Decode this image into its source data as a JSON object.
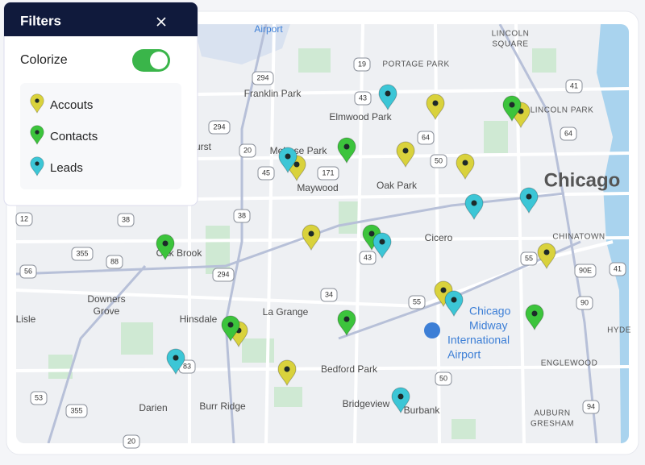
{
  "filters": {
    "title": "Filters",
    "colorize": "Colorize",
    "legend": [
      {
        "label": "Accouts",
        "color": "#d9d23c"
      },
      {
        "label": "Contacts",
        "color": "#3cc43c"
      },
      {
        "label": "Leads",
        "color": "#3cc6d6"
      }
    ]
  },
  "map": {
    "places": [
      "Airport",
      "Franklin Park",
      "Elmwood Park",
      "Melrose Park",
      "Maywood",
      "Oak Park",
      "Chicago",
      "Cicero",
      "Oak Brook",
      "Downers",
      "Grove",
      "Hinsdale",
      "La Grange",
      "Bedford Park",
      "Burr Ridge",
      "Darien",
      "Bridgeview",
      "Burbank",
      "Lisle",
      "urst"
    ],
    "airport": [
      "Chicago",
      "Midway",
      "International",
      "Airport"
    ],
    "neighborhoods": [
      "LINCOLN",
      "SQUARE",
      "PORTAGE PARK",
      "LINCOLN PARK",
      "CHINATOWN",
      "ENGLEWOOD",
      "AUBURN",
      "GRESHAM",
      "HYDE"
    ],
    "routes": [
      "294",
      "19",
      "43",
      "64",
      "50",
      "41",
      "64",
      "171",
      "45",
      "20",
      "294",
      "38",
      "38",
      "355",
      "88",
      "56",
      "294",
      "34",
      "55",
      "55",
      "90E",
      "41",
      "90",
      "83",
      "53",
      "355",
      "12",
      "43",
      "94",
      "20",
      "50"
    ]
  }
}
